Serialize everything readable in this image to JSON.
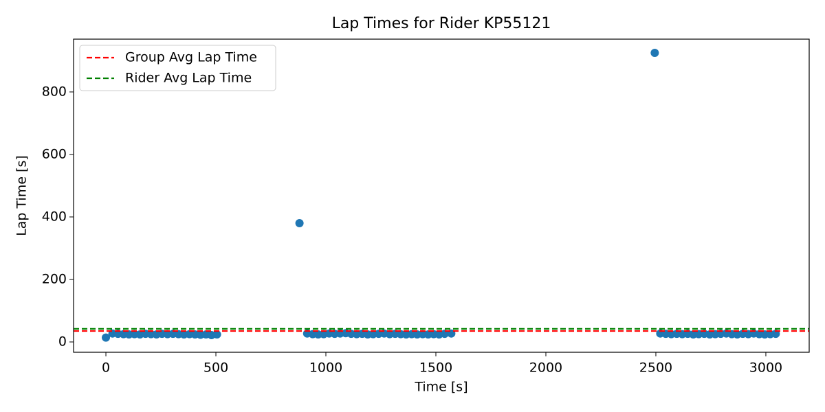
{
  "chart_data": {
    "type": "scatter",
    "title": "Lap Times for Rider KP55121",
    "x_label": "Time [s]",
    "y_label": "Lap Time [s]",
    "color": "#1f77b4",
    "x": [
      0,
      30,
      55,
      80,
      105,
      130,
      155,
      180,
      205,
      230,
      255,
      280,
      305,
      330,
      355,
      380,
      405,
      430,
      455,
      480,
      505,
      880,
      915,
      940,
      965,
      990,
      1015,
      1040,
      1065,
      1090,
      1115,
      1140,
      1165,
      1190,
      1215,
      1240,
      1265,
      1290,
      1315,
      1340,
      1365,
      1390,
      1415,
      1440,
      1465,
      1490,
      1515,
      1540,
      1570,
      2495,
      2520,
      2545,
      2570,
      2595,
      2620,
      2645,
      2670,
      2695,
      2720,
      2745,
      2770,
      2795,
      2820,
      2845,
      2870,
      2895,
      2920,
      2945,
      2970,
      2995,
      3020,
      3045
    ],
    "values": [
      14,
      27,
      26,
      25,
      24,
      25,
      24,
      26,
      25,
      24,
      26,
      25,
      26,
      25,
      24,
      25,
      24,
      23,
      24,
      22,
      24,
      380,
      27,
      25,
      24,
      25,
      27,
      26,
      27,
      28,
      26,
      25,
      26,
      24,
      25,
      26,
      27,
      25,
      26,
      25,
      24,
      25,
      24,
      25,
      24,
      25,
      24,
      26,
      27,
      925,
      27,
      26,
      25,
      26,
      25,
      26,
      24,
      25,
      26,
      24,
      25,
      26,
      27,
      25,
      24,
      26,
      25,
      27,
      25,
      24,
      25,
      26
    ],
    "hlines": [
      {
        "name": "Group Avg Lap Time",
        "color": "#ff0000",
        "value": 35
      },
      {
        "name": "Rider Avg Lap Time",
        "color": "#008000",
        "value": 42
      }
    ],
    "xlim": [
      -147,
      3197
    ],
    "ylim": [
      -33,
      969
    ],
    "xticks": [
      0,
      500,
      1000,
      1500,
      2000,
      2500,
      3000
    ],
    "yticks": [
      0,
      200,
      400,
      600,
      800
    ],
    "legend": "upper left"
  }
}
